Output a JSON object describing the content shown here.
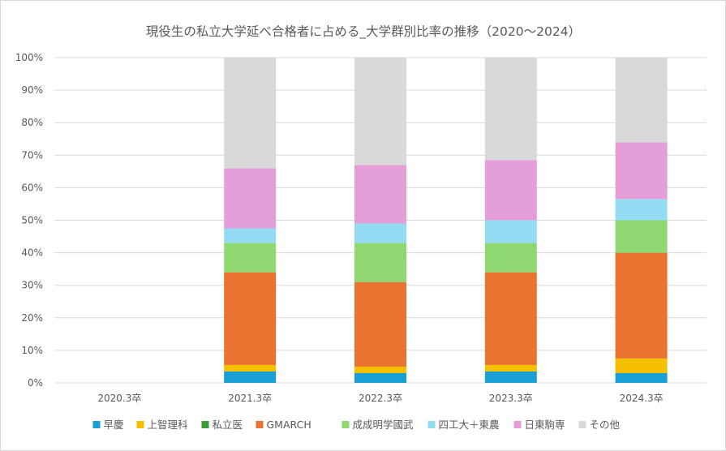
{
  "chart_data": {
    "type": "bar",
    "stacked": true,
    "title": "現役生の私立大学延べ合格者に占める_大学群別比率の推移（2020〜2024）",
    "categories": [
      "2020.3卒",
      "2021.3卒",
      "2022.3卒",
      "2023.3卒",
      "2024.3卒"
    ],
    "y_ticks": [
      "0%",
      "10%",
      "20%",
      "30%",
      "40%",
      "50%",
      "60%",
      "70%",
      "80%",
      "90%",
      "100%"
    ],
    "ylim": [
      0,
      100
    ],
    "grid": true,
    "legend_position": "bottom",
    "series": [
      {
        "name": "早慶",
        "color": "#1a9ed6",
        "values": [
          null,
          3.5,
          3.0,
          3.5,
          3.0
        ]
      },
      {
        "name": "上智理科",
        "color": "#f5c000",
        "values": [
          null,
          2.0,
          2.0,
          2.0,
          4.5
        ]
      },
      {
        "name": "私立医",
        "color": "#3b9a3b",
        "values": [
          null,
          0,
          0,
          0,
          0
        ]
      },
      {
        "name": "GMARCH",
        "color": "#ea7331",
        "values": [
          null,
          28.5,
          26.0,
          28.5,
          32.5
        ]
      },
      {
        "name": "成成明学國武",
        "color": "#8fd872",
        "values": [
          null,
          9.0,
          12.0,
          9.0,
          10.0
        ]
      },
      {
        "name": "四工大＋東農",
        "color": "#94dcf3",
        "values": [
          null,
          4.5,
          6.0,
          7.0,
          6.5
        ]
      },
      {
        "name": "日東駒専",
        "color": "#e49fd9",
        "values": [
          null,
          18.5,
          18.0,
          18.5,
          17.5
        ]
      },
      {
        "name": "その他",
        "color": "#d9d9d9",
        "values": [
          null,
          34.0,
          33.0,
          31.5,
          26.0
        ]
      }
    ]
  }
}
